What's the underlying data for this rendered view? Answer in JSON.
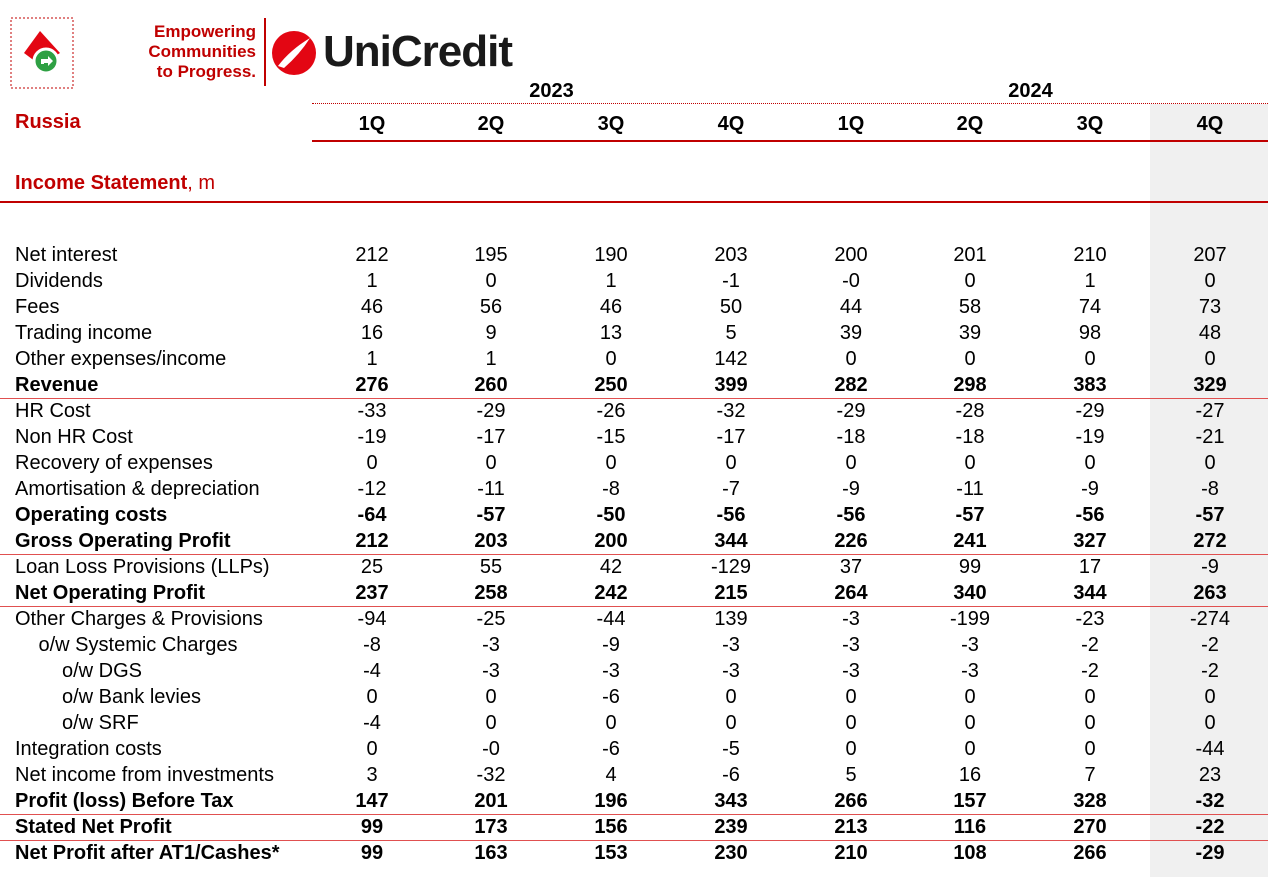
{
  "header": {
    "tagline": [
      "Empowering",
      "Communities",
      "to Progress."
    ],
    "brand": "UniCredit"
  },
  "table": {
    "entity": "Russia",
    "section": "Income Statement",
    "section_unit": ", m",
    "years": [
      {
        "label": "2023",
        "span": 4
      },
      {
        "label": "2024",
        "span": 4
      }
    ],
    "quarters": [
      "1Q",
      "2Q",
      "3Q",
      "4Q",
      "1Q",
      "2Q",
      "3Q",
      "4Q"
    ],
    "rows": [
      {
        "label": "Net interest",
        "cells": [
          "212",
          "195",
          "190",
          "203",
          "200",
          "201",
          "210",
          "207"
        ]
      },
      {
        "label": "Dividends",
        "cells": [
          "1",
          "0",
          "1",
          "-1",
          "-0",
          "0",
          "1",
          "0"
        ]
      },
      {
        "label": "Fees",
        "cells": [
          "46",
          "56",
          "46",
          "50",
          "44",
          "58",
          "74",
          "73"
        ]
      },
      {
        "label": "Trading income",
        "cells": [
          "16",
          "9",
          "13",
          "5",
          "39",
          "39",
          "98",
          "48"
        ]
      },
      {
        "label": "Other expenses/income",
        "cells": [
          "1",
          "1",
          "0",
          "142",
          "0",
          "0",
          "0",
          "0"
        ]
      },
      {
        "label": "Revenue",
        "bold": true,
        "rule_below": true,
        "cells": [
          "276",
          "260",
          "250",
          "399",
          "282",
          "298",
          "383",
          "329"
        ]
      },
      {
        "label": "HR Cost",
        "cells": [
          "-33",
          "-29",
          "-26",
          "-32",
          "-29",
          "-28",
          "-29",
          "-27"
        ]
      },
      {
        "label": "Non HR Cost",
        "cells": [
          "-19",
          "-17",
          "-15",
          "-17",
          "-18",
          "-18",
          "-19",
          "-21"
        ]
      },
      {
        "label": "Recovery of expenses",
        "cells": [
          "0",
          "0",
          "0",
          "0",
          "0",
          "0",
          "0",
          "0"
        ]
      },
      {
        "label": "Amortisation & depreciation",
        "cells": [
          "-12",
          "-11",
          "-8",
          "-7",
          "-9",
          "-11",
          "-9",
          "-8"
        ]
      },
      {
        "label": "Operating costs",
        "bold": true,
        "cells": [
          "-64",
          "-57",
          "-50",
          "-56",
          "-56",
          "-57",
          "-56",
          "-57"
        ]
      },
      {
        "label": "Gross Operating Profit",
        "bold": true,
        "rule_below": true,
        "cells": [
          "212",
          "203",
          "200",
          "344",
          "226",
          "241",
          "327",
          "272"
        ]
      },
      {
        "label": "Loan Loss Provisions (LLPs)",
        "cells": [
          "25",
          "55",
          "42",
          "-129",
          "37",
          "99",
          "17",
          "-9"
        ]
      },
      {
        "label": "Net Operating Profit",
        "bold": true,
        "rule_below": true,
        "cells": [
          "237",
          "258",
          "242",
          "215",
          "264",
          "340",
          "344",
          "263"
        ]
      },
      {
        "label": "Other Charges & Provisions",
        "cells": [
          "-94",
          "-25",
          "-44",
          "139",
          "-3",
          "-199",
          "-23",
          "-274"
        ]
      },
      {
        "label": "o/w Systemic Charges",
        "indent": 1,
        "cells": [
          "-8",
          "-3",
          "-9",
          "-3",
          "-3",
          "-3",
          "-2",
          "-2"
        ]
      },
      {
        "label": "o/w DGS",
        "indent": 2,
        "cells": [
          "-4",
          "-3",
          "-3",
          "-3",
          "-3",
          "-3",
          "-2",
          "-2"
        ]
      },
      {
        "label": "o/w Bank levies",
        "indent": 2,
        "cells": [
          "0",
          "0",
          "-6",
          "0",
          "0",
          "0",
          "0",
          "0"
        ]
      },
      {
        "label": "o/w SRF",
        "indent": 2,
        "cells": [
          "-4",
          "0",
          "0",
          "0",
          "0",
          "0",
          "0",
          "0"
        ]
      },
      {
        "label": "Integration costs",
        "cells": [
          "0",
          "-0",
          "-6",
          "-5",
          "0",
          "0",
          "0",
          "-44"
        ]
      },
      {
        "label": "Net income from investments",
        "cells": [
          "3",
          "-32",
          "4",
          "-6",
          "5",
          "16",
          "7",
          "23"
        ]
      },
      {
        "label": "Profit (loss) Before Tax",
        "bold": true,
        "rule_below": true,
        "cells": [
          "147",
          "201",
          "196",
          "343",
          "266",
          "157",
          "328",
          "-32"
        ]
      },
      {
        "label": "Stated Net Profit",
        "bold": true,
        "rule_below": true,
        "cells": [
          "99",
          "173",
          "156",
          "239",
          "213",
          "116",
          "270",
          "-22"
        ]
      },
      {
        "label": "Net Profit after AT1/Cashes*",
        "bold": true,
        "cells": [
          "99",
          "163",
          "153",
          "230",
          "210",
          "108",
          "266",
          "-29"
        ]
      }
    ]
  }
}
